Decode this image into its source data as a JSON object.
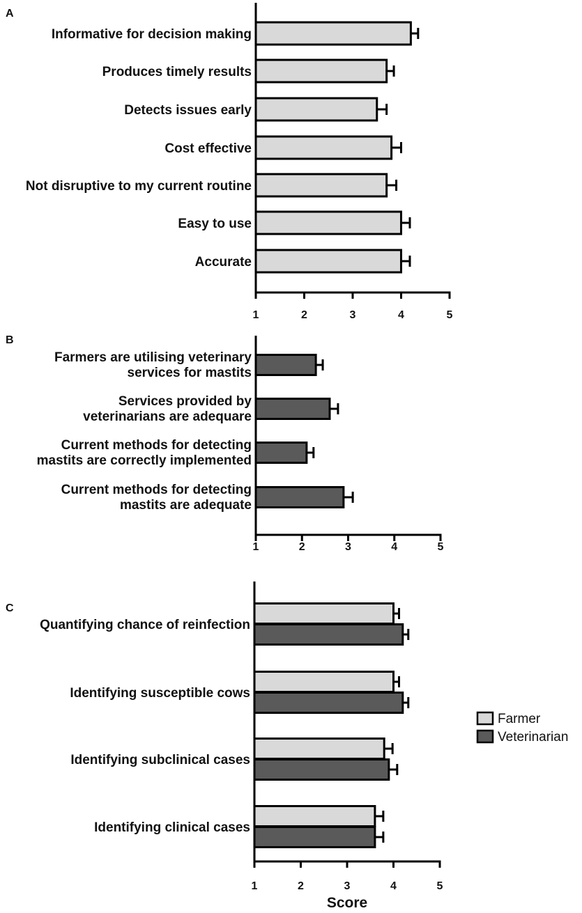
{
  "colors": {
    "farmer": "#d9d9d9",
    "veterinarian": "#5a5a5a",
    "stroke": "#000000"
  },
  "chart_data": [
    {
      "panel": "A",
      "type": "bar",
      "orientation": "horizontal",
      "categories": [
        "Informative for decision making",
        "Produces timely results",
        "Detects issues early",
        "Cost effective",
        "Not disruptive to my current routine",
        "Easy to use",
        "Accurate"
      ],
      "series": [
        {
          "name": "Farmer",
          "values": [
            4.2,
            3.7,
            3.5,
            3.8,
            3.7,
            4.0,
            4.0
          ],
          "errors": [
            0.15,
            0.15,
            0.2,
            0.2,
            0.2,
            0.18,
            0.18
          ]
        }
      ],
      "xlim": [
        1,
        5
      ],
      "xticks": [
        "1",
        "2",
        "3",
        "4",
        "5"
      ],
      "xlabel": ""
    },
    {
      "panel": "B",
      "type": "bar",
      "orientation": "horizontal",
      "categories": [
        [
          "Farmers are utilising veterinary",
          "services for mastits"
        ],
        [
          "Services provided by",
          "veterinarians are adequare"
        ],
        [
          "Current methods for detecting",
          "mastits are correctly implemented"
        ],
        [
          "Current methods for detecting",
          "mastits are adequate"
        ]
      ],
      "series": [
        {
          "name": "Veterinarian",
          "values": [
            2.3,
            2.6,
            2.1,
            2.9
          ],
          "errors": [
            0.15,
            0.18,
            0.15,
            0.2
          ]
        }
      ],
      "xlim": [
        1,
        5
      ],
      "xticks": [
        "1",
        "2",
        "3",
        "4",
        "5"
      ],
      "xlabel": ""
    },
    {
      "panel": "C",
      "type": "bar",
      "orientation": "horizontal",
      "categories": [
        "Quantifying chance of reinfection",
        "Identifying susceptible cows",
        "Identifying subclinical cases",
        "Identifying clinical cases"
      ],
      "series": [
        {
          "name": "Farmer",
          "values": [
            4.0,
            4.0,
            3.8,
            3.6
          ],
          "errors": [
            0.12,
            0.12,
            0.18,
            0.18
          ]
        },
        {
          "name": "Veterinarian",
          "values": [
            4.2,
            4.2,
            3.9,
            3.6
          ],
          "errors": [
            0.12,
            0.12,
            0.18,
            0.18
          ]
        }
      ],
      "xlim": [
        1,
        5
      ],
      "xticks": [
        "1",
        "2",
        "3",
        "4",
        "5"
      ],
      "xlabel": "Score",
      "legend": {
        "position": "right",
        "entries": [
          "Farmer",
          "Veterinarian"
        ]
      }
    }
  ]
}
